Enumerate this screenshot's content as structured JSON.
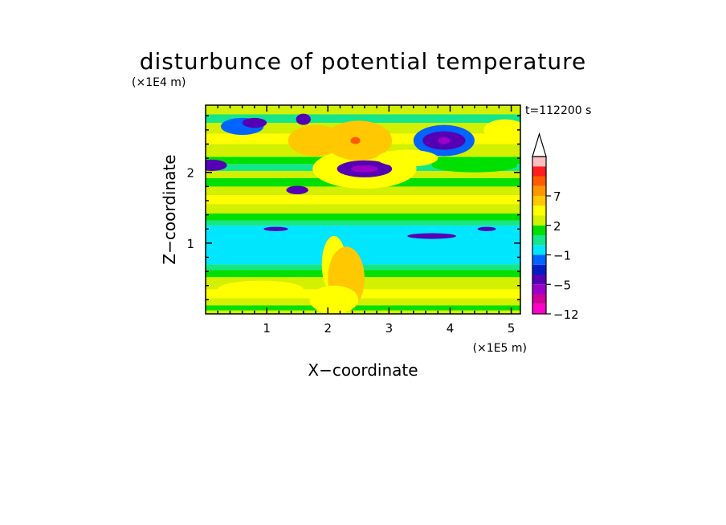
{
  "chart_data": {
    "type": "heatmap",
    "title": "disturbunce of potential temperature",
    "time_label": "t=112200 s",
    "xlabel": "X−coordinate",
    "ylabel": "Z−coordinate",
    "x_scale_label": "(×1E5 m)",
    "y_scale_label": "(×1E4 m)",
    "xlim": [
      0,
      5.15
    ],
    "ylim": [
      0,
      2.95
    ],
    "x_ticks": [
      1,
      2,
      3,
      4,
      5
    ],
    "y_ticks": [
      1,
      2
    ],
    "colorbar": {
      "levels": [
        -12,
        -10,
        -8,
        -5,
        -4,
        -3,
        -1,
        0,
        1,
        2,
        3,
        5,
        7,
        8,
        9,
        10
      ],
      "colors": [
        "#ff00c8",
        "#d0009a",
        "#9b00c8",
        "#5500b4",
        "#001ec8",
        "#0064ff",
        "#00e6ff",
        "#14e68c",
        "#00e000",
        "#d2f000",
        "#ffff00",
        "#ffc800",
        "#ff9600",
        "#ff5a00",
        "#ff1e1e",
        "#ffbebe"
      ],
      "tick_labels": [
        "−12",
        "−5",
        "−1",
        "2",
        "7"
      ],
      "tick_values": [
        -12,
        -5,
        -1,
        2,
        7
      ],
      "extend": "max"
    }
  }
}
